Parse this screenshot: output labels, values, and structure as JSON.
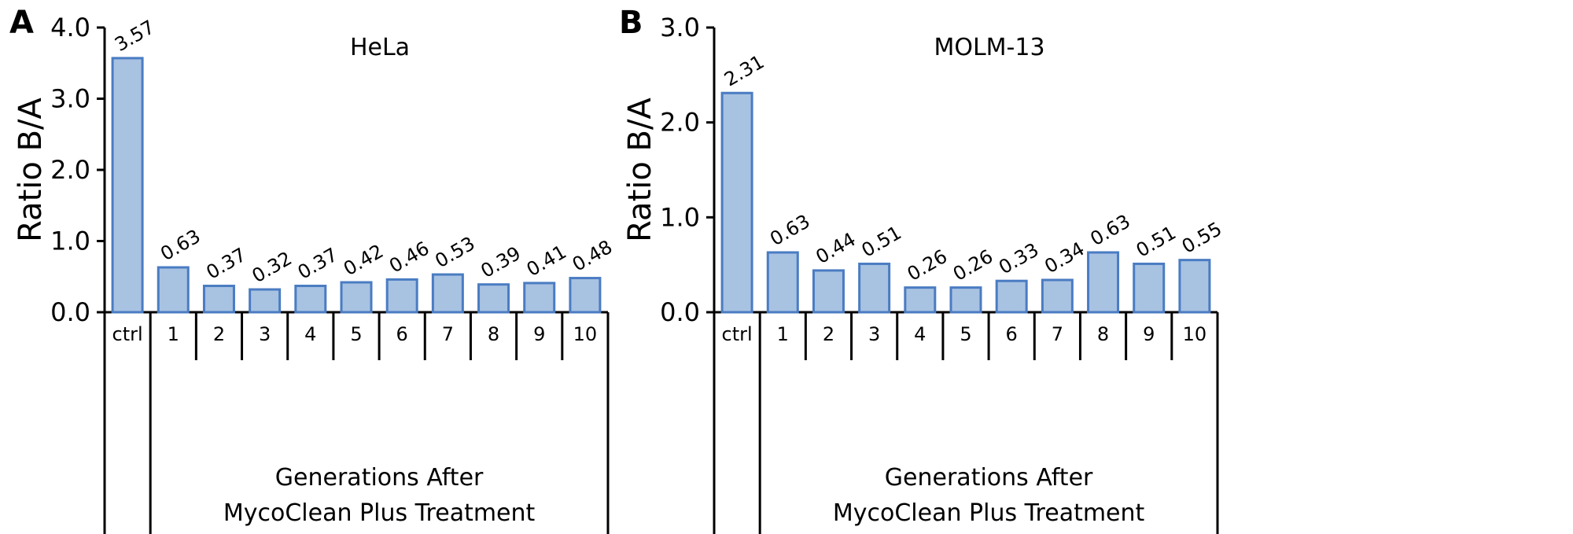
{
  "chart_data": [
    {
      "type": "bar",
      "panel_label": "A",
      "title": "HeLa",
      "ylabel": "Ratio B/A",
      "xlabel": [
        "Generations After",
        "MycoClean Plus Treatment"
      ],
      "categories": [
        "ctrl",
        "1",
        "2",
        "3",
        "4",
        "5",
        "6",
        "7",
        "8",
        "9",
        "10"
      ],
      "values": [
        3.57,
        0.63,
        0.37,
        0.32,
        0.37,
        0.42,
        0.46,
        0.53,
        0.39,
        0.41,
        0.48
      ],
      "value_labels": [
        "3.57",
        "0.63",
        "0.37",
        "0.32",
        "0.37",
        "0.42",
        "0.46",
        "0.53",
        "0.39",
        "0.41",
        "0.48"
      ],
      "ylim": [
        0,
        4.0
      ],
      "yticks": [
        0,
        1.0,
        2.0,
        3.0,
        4.0
      ],
      "ytick_labels": [
        "0.0",
        "1.0",
        "2.0",
        "3.0",
        "4.0"
      ],
      "grid": false,
      "bar_fill": "#a8c2e2",
      "bar_stroke": "#4a7cc2"
    },
    {
      "type": "bar",
      "panel_label": "B",
      "title": "MOLM-13",
      "ylabel": "Ratio B/A",
      "xlabel": [
        "Generations After",
        "MycoClean Plus Treatment"
      ],
      "categories": [
        "ctrl",
        "1",
        "2",
        "3",
        "4",
        "5",
        "6",
        "7",
        "8",
        "9",
        "10"
      ],
      "values": [
        2.31,
        0.63,
        0.44,
        0.51,
        0.26,
        0.26,
        0.33,
        0.34,
        0.63,
        0.51,
        0.55
      ],
      "value_labels": [
        "2.31",
        "0.63",
        "0.44",
        "0.51",
        "0.26",
        "0.26",
        "0.33",
        "0.34",
        "0.63",
        "0.51",
        "0.55"
      ],
      "ylim": [
        0,
        3.0
      ],
      "yticks": [
        0,
        1.0,
        2.0,
        3.0
      ],
      "ytick_labels": [
        "0.0",
        "1.0",
        "2.0",
        "3.0"
      ],
      "grid": false,
      "bar_fill": "#a8c2e2",
      "bar_stroke": "#4a7cc2"
    }
  ]
}
